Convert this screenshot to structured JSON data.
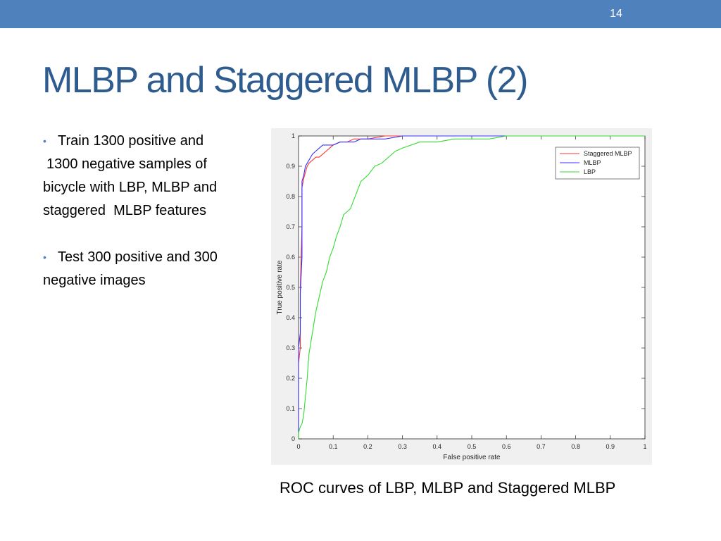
{
  "slide": {
    "number": "14",
    "title": "MLBP and Staggered MLBP (2)",
    "bullets": [
      {
        "lines": [
          "Train 1300 positive and",
          "1300 negative samples of",
          "bicycle with LBP, MLBP and",
          "staggered  MLBP features"
        ]
      },
      {
        "lines": [
          "Test 300 positive and 300",
          "negative images"
        ]
      }
    ],
    "caption": "ROC curves of LBP, MLBP and Staggered MLBP"
  },
  "colors": {
    "header_bar": "#4f81bd",
    "title": "#2f5c8f",
    "bullet_marker": "#4f81bd"
  },
  "chart_data": {
    "type": "line",
    "title": "",
    "xlabel": "False positive rate",
    "ylabel": "True positive rate",
    "xlim": [
      0,
      1
    ],
    "ylim": [
      0,
      1
    ],
    "x_ticks": [
      "0",
      "0.1",
      "0.2",
      "0.3",
      "0.4",
      "0.5",
      "0.6",
      "0.7",
      "0.8",
      "0.9",
      "1"
    ],
    "y_ticks": [
      "0",
      "0.1",
      "0.2",
      "0.3",
      "0.4",
      "0.5",
      "0.6",
      "0.7",
      "0.8",
      "0.9",
      "1"
    ],
    "grid": false,
    "legend_position": "top-right",
    "series": [
      {
        "name": "Staggered MLBP",
        "color": "#ff3333",
        "x": [
          0,
          0,
          0.005,
          0.005,
          0.01,
          0.01,
          0.015,
          0.02,
          0.025,
          0.03,
          0.04,
          0.05,
          0.06,
          0.07,
          0.08,
          0.09,
          0.1,
          0.12,
          0.14,
          0.16,
          0.18,
          0.2,
          0.25,
          0.3,
          0.4,
          0.5,
          0.65,
          1
        ],
        "y": [
          0,
          0.25,
          0.3,
          0.5,
          0.7,
          0.83,
          0.86,
          0.88,
          0.9,
          0.91,
          0.92,
          0.93,
          0.93,
          0.94,
          0.95,
          0.96,
          0.97,
          0.98,
          0.98,
          0.99,
          0.99,
          0.99,
          1,
          1,
          1,
          1,
          1,
          1
        ]
      },
      {
        "name": "MLBP",
        "color": "#3333ff",
        "x": [
          0,
          0,
          0.005,
          0.005,
          0.01,
          0.01,
          0.015,
          0.02,
          0.025,
          0.03,
          0.04,
          0.05,
          0.06,
          0.07,
          0.08,
          0.09,
          0.1,
          0.12,
          0.14,
          0.16,
          0.18,
          0.2,
          0.25,
          0.3,
          0.4,
          0.5,
          0.65,
          1
        ],
        "y": [
          0,
          0.3,
          0.35,
          0.48,
          0.6,
          0.85,
          0.87,
          0.9,
          0.91,
          0.92,
          0.94,
          0.95,
          0.96,
          0.97,
          0.97,
          0.97,
          0.97,
          0.98,
          0.98,
          0.98,
          0.99,
          0.99,
          0.99,
          1,
          1,
          1,
          1,
          1
        ]
      },
      {
        "name": "LBP",
        "color": "#33dd33",
        "x": [
          0,
          0,
          0.005,
          0.01,
          0.015,
          0.02,
          0.025,
          0.03,
          0.04,
          0.05,
          0.06,
          0.07,
          0.08,
          0.09,
          0.1,
          0.11,
          0.12,
          0.13,
          0.14,
          0.15,
          0.16,
          0.18,
          0.2,
          0.22,
          0.24,
          0.26,
          0.28,
          0.3,
          0.35,
          0.4,
          0.45,
          0.5,
          0.55,
          0.6,
          0.65,
          0.7,
          0.8,
          0.9,
          1
        ],
        "y": [
          0,
          0.02,
          0.04,
          0.05,
          0.08,
          0.14,
          0.2,
          0.28,
          0.35,
          0.42,
          0.47,
          0.52,
          0.55,
          0.6,
          0.63,
          0.67,
          0.7,
          0.74,
          0.75,
          0.76,
          0.79,
          0.85,
          0.87,
          0.9,
          0.91,
          0.93,
          0.95,
          0.96,
          0.98,
          0.98,
          0.99,
          0.99,
          0.99,
          1,
          1,
          1,
          1,
          1,
          1
        ]
      }
    ]
  }
}
